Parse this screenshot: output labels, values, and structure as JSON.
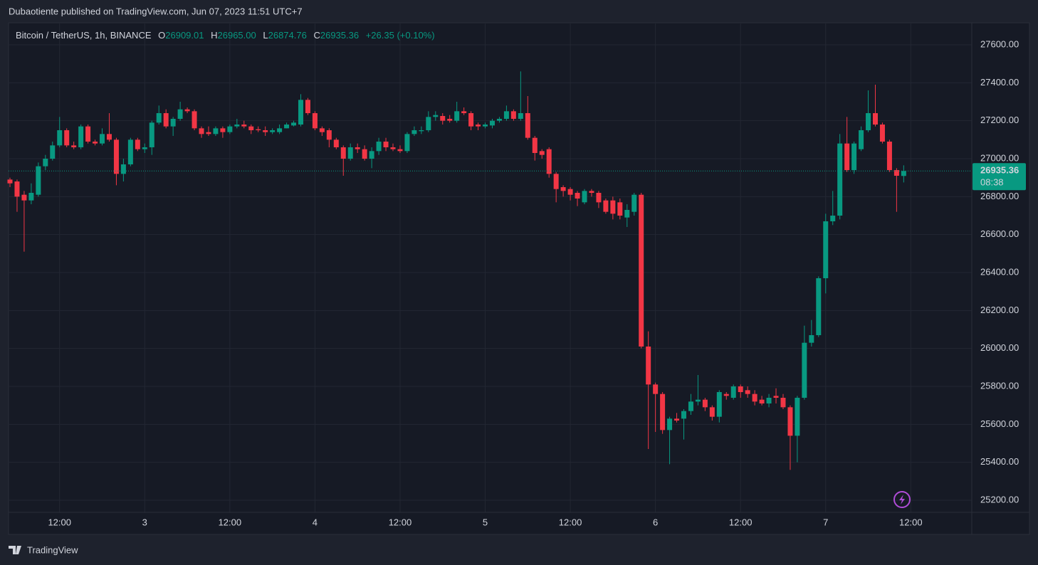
{
  "page": {
    "published": "Dubaotiente published on TradingView.com, Jun 07, 2023 11:51 UTC+7",
    "brand": "TradingView"
  },
  "chart_data": {
    "type": "candlestick",
    "header": {
      "symbol": "Bitcoin / TetherUS, 1h, BINANCE",
      "o_key": "O",
      "o": "26909.01",
      "h_key": "H",
      "h": "26965.00",
      "l_key": "L",
      "l": "26874.76",
      "c_key": "C",
      "c": "26935.36",
      "change": "+26.35 (+0.10%)"
    },
    "last_price_label": "26935.36",
    "countdown": "08:38",
    "up_color": "#089981",
    "down_color": "#f23645",
    "grid": true,
    "xlim": [
      -0.2,
      135.6
    ],
    "xticks": [
      {
        "value": 7,
        "label": "12:00"
      },
      {
        "value": 19,
        "label": "3"
      },
      {
        "value": 31,
        "label": "12:00"
      },
      {
        "value": 43,
        "label": "4"
      },
      {
        "value": 55,
        "label": "12:00"
      },
      {
        "value": 67,
        "label": "5"
      },
      {
        "value": 79,
        "label": "12:00"
      },
      {
        "value": 91,
        "label": "6"
      },
      {
        "value": 103,
        "label": "12:00"
      },
      {
        "value": 115,
        "label": "7"
      },
      {
        "value": 127,
        "label": "12:00"
      }
    ],
    "ylim": [
      25136.25,
      27712.5
    ],
    "yticks": [
      {
        "value": 25200,
        "label": "25200.00"
      },
      {
        "value": 25400,
        "label": "25400.00"
      },
      {
        "value": 25600,
        "label": "25600.00"
      },
      {
        "value": 25800,
        "label": "25800.00"
      },
      {
        "value": 26000,
        "label": "26000.00"
      },
      {
        "value": 26200,
        "label": "26200.00"
      },
      {
        "value": 26400,
        "label": "26400.00"
      },
      {
        "value": 26600,
        "label": "26600.00"
      },
      {
        "value": 26800,
        "label": "26800.00"
      },
      {
        "value": 27000,
        "label": "27000.00"
      },
      {
        "value": 27200,
        "label": "27200.00"
      },
      {
        "value": 27400,
        "label": "27400.00"
      },
      {
        "value": 27600,
        "label": "27600.00"
      }
    ],
    "open": [
      26890,
      26880,
      26810,
      26780,
      26810,
      26960,
      27000,
      27070,
      27150,
      27070,
      27060,
      27170,
      27090,
      27080,
      27130,
      27100,
      26920,
      26970,
      27100,
      27050,
      27060,
      27190,
      27240,
      27170,
      27210,
      27260,
      27250,
      27160,
      27140,
      27130,
      27160,
      27140,
      27170,
      27180,
      27170,
      27155,
      27150,
      27140,
      27140,
      27160,
      27175,
      27180,
      27310,
      27240,
      27160,
      27150,
      27100,
      27060,
      27000,
      27060,
      27050,
      27000,
      27040,
      27090,
      27060,
      27050,
      27040,
      27130,
      27145,
      27150,
      27220,
      27225,
      27210,
      27200,
      27250,
      27240,
      27180,
      27170,
      27175,
      27200,
      27210,
      27250,
      27210,
      27240,
      27110,
      27040,
      27050,
      26920,
      26850,
      26840,
      26820,
      26770,
      26830,
      26820,
      26780,
      26780,
      26770,
      26690,
      26720,
      26810,
      26010,
      25810,
      25760,
      25570,
      25630,
      25630,
      25670,
      25720,
      25730,
      25690,
      25640,
      25760,
      25740,
      25800,
      25780,
      25760,
      25730,
      25710,
      25750,
      25740,
      25690,
      25540,
      25740,
      26030,
      26070,
      26370,
      26670,
      26700,
      27080,
      26940,
      27050,
      27150,
      27240,
      27180,
      27090,
      26940,
      26909.01
    ],
    "high": [
      26900,
      26890,
      26830,
      26870,
      26980,
      27020,
      27090,
      27220,
      27160,
      27090,
      27180,
      27180,
      27100,
      27160,
      27240,
      27110,
      27000,
      27110,
      27110,
      27080,
      27200,
      27280,
      27260,
      27220,
      27300,
      27270,
      27260,
      27170,
      27170,
      27170,
      27170,
      27180,
      27210,
      27200,
      27180,
      27170,
      27170,
      27160,
      27180,
      27190,
      27200,
      27340,
      27320,
      27250,
      27170,
      27160,
      27110,
      27070,
      27080,
      27080,
      27070,
      27060,
      27110,
      27110,
      27080,
      27070,
      27140,
      27170,
      27170,
      27250,
      27250,
      27240,
      27230,
      27300,
      27270,
      27250,
      27190,
      27190,
      27210,
      27220,
      27280,
      27260,
      27460,
      27330,
      27120,
      27050,
      27060,
      26930,
      26860,
      26850,
      26830,
      26840,
      26840,
      26830,
      26790,
      26800,
      26790,
      26760,
      26820,
      26820,
      26090,
      25820,
      25770,
      25640,
      25660,
      25680,
      25760,
      25860,
      25740,
      25700,
      25780,
      25770,
      25810,
      25810,
      25800,
      25780,
      25750,
      25760,
      25790,
      25760,
      25700,
      25750,
      26120,
      26150,
      26380,
      26710,
      26830,
      27130,
      27220,
      27090,
      27170,
      27360,
      27390,
      27190,
      27100,
      26950,
      26965.0
    ],
    "low": [
      26850,
      26720,
      26510,
      26760,
      26800,
      26940,
      26990,
      27060,
      27060,
      27050,
      27050,
      27080,
      27070,
      27070,
      27090,
      26860,
      26880,
      26960,
      27040,
      27030,
      27020,
      27180,
      27160,
      27120,
      27200,
      27240,
      27150,
      27110,
      27120,
      27120,
      27110,
      27130,
      27160,
      27160,
      27130,
      27140,
      27120,
      27130,
      27130,
      27160,
      27170,
      27170,
      27230,
      27150,
      27120,
      27060,
      27050,
      26910,
      26990,
      27030,
      26990,
      26950,
      27020,
      27040,
      27040,
      27030,
      27030,
      27120,
      27130,
      27140,
      27200,
      27180,
      27190,
      27190,
      27230,
      27150,
      27150,
      27160,
      27160,
      27190,
      27200,
      27200,
      27200,
      27100,
      26990,
      27000,
      26900,
      26770,
      26800,
      26780,
      26750,
      26760,
      26800,
      26740,
      26710,
      26680,
      26680,
      26640,
      26700,
      26000,
      25470,
      25560,
      25550,
      25390,
      25610,
      25520,
      25650,
      25700,
      25670,
      25620,
      25610,
      25730,
      25730,
      25740,
      25740,
      25700,
      25700,
      25690,
      25710,
      25680,
      25360,
      25400,
      25730,
      26010,
      26060,
      26290,
      26650,
      26680,
      26930,
      26920,
      27040,
      27140,
      27170,
      27080,
      26930,
      26720,
      26874.76
    ],
    "close": [
      26870,
      26800,
      26780,
      26820,
      26960,
      27000,
      27070,
      27150,
      27070,
      27060,
      27170,
      27090,
      27080,
      27130,
      27100,
      26920,
      26970,
      27100,
      27050,
      27060,
      27190,
      27240,
      27170,
      27210,
      27260,
      27250,
      27160,
      27130,
      27130,
      27160,
      27140,
      27170,
      27180,
      27170,
      27150,
      27150,
      27140,
      27150,
      27160,
      27180,
      27190,
      27310,
      27240,
      27160,
      27140,
      27100,
      27060,
      27000,
      27060,
      27050,
      27000,
      27040,
      27090,
      27060,
      27050,
      27040,
      27130,
      27150,
      27150,
      27220,
      27230,
      27200,
      27200,
      27250,
      27240,
      27170,
      27170,
      27180,
      27200,
      27210,
      27250,
      27210,
      27240,
      27110,
      27030,
      27020,
      26920,
      26840,
      26830,
      26810,
      26790,
      26830,
      26820,
      26770,
      26720,
      26710,
      26700,
      26730,
      26810,
      26010,
      25810,
      25760,
      25570,
      25630,
      25620,
      25670,
      25720,
      25730,
      25690,
      25640,
      25770,
      25750,
      25800,
      25770,
      25760,
      25720,
      25710,
      25740,
      25740,
      25690,
      25540,
      25740,
      26030,
      26070,
      26370,
      26670,
      26700,
      27080,
      26940,
      27080,
      27150,
      27240,
      27180,
      27090,
      26940,
      26910,
      26935.36
    ]
  }
}
